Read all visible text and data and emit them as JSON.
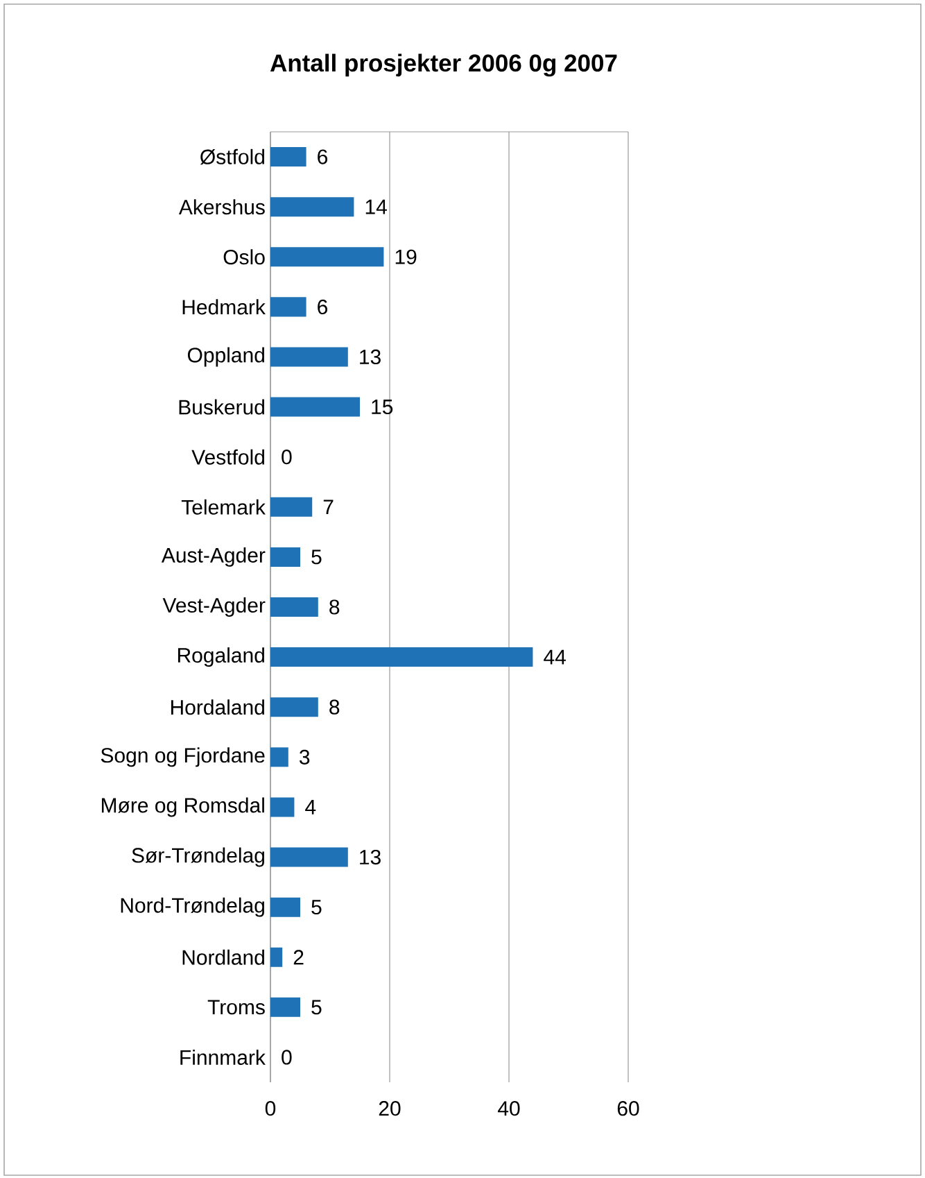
{
  "chart_data": {
    "type": "bar",
    "orientation": "horizontal",
    "title": "Antall prosjekter 2006 0g 2007",
    "categories": [
      "Østfold",
      "Akershus",
      "Oslo",
      "Hedmark",
      "Oppland",
      "Buskerud",
      "Vestfold",
      "Telemark",
      "Aust-Agder",
      "Vest-Agder",
      "Rogaland",
      "Hordaland",
      "Sogn og Fjordane",
      "Møre og Romsdal",
      "Sør-Trøndelag",
      "Nord-Trøndelag",
      "Nordland",
      "Troms",
      "Finnmark"
    ],
    "values": [
      6,
      14,
      19,
      6,
      13,
      15,
      0,
      7,
      5,
      8,
      44,
      8,
      3,
      4,
      13,
      5,
      2,
      5,
      0
    ],
    "color": "#1f72b5",
    "xlim": [
      0,
      60
    ],
    "xticks": [
      0,
      20,
      40,
      60
    ],
    "grid": "x",
    "data_labels": true
  }
}
